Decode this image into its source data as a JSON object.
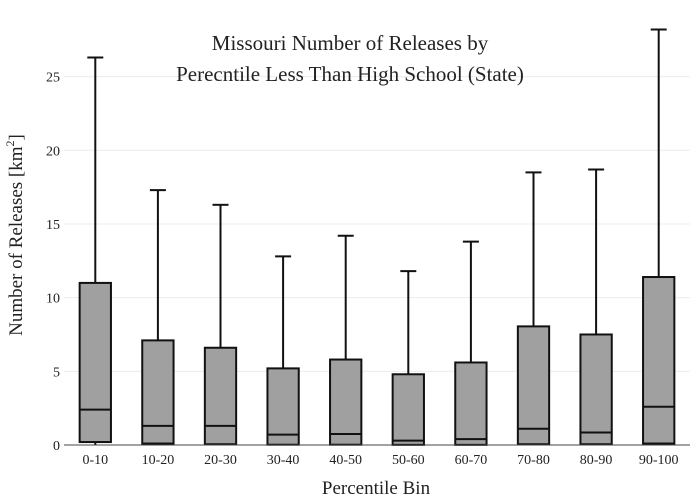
{
  "chart_data": {
    "type": "box",
    "title_lines": [
      "Missouri Number of Releases by",
      "Perecntile Less Than High School (State)"
    ],
    "xlabel": "Percentile Bin",
    "ylabel": "Number of Releases  [km",
    "ylabel_sup": "2",
    "ylabel_close": "]",
    "ylim": [
      0,
      28.3
    ],
    "yticks": [
      0,
      5,
      10,
      15,
      20,
      25
    ],
    "grid": true,
    "legend": "none",
    "box_fill": "#a0a0a0",
    "categories": [
      "0-10",
      "10-20",
      "20-30",
      "30-40",
      "40-50",
      "50-60",
      "60-70",
      "70-80",
      "80-90",
      "90-100"
    ],
    "boxes": [
      {
        "min": 0.0,
        "q1": 0.2,
        "median": 2.4,
        "q3": 11.0,
        "max": 26.3
      },
      {
        "min": 0.0,
        "q1": 0.1,
        "median": 1.3,
        "q3": 7.1,
        "max": 17.3
      },
      {
        "min": 0.0,
        "q1": 0.05,
        "median": 1.3,
        "q3": 6.6,
        "max": 16.3
      },
      {
        "min": 0.0,
        "q1": 0.02,
        "median": 0.7,
        "q3": 5.2,
        "max": 12.8
      },
      {
        "min": 0.0,
        "q1": 0.02,
        "median": 0.75,
        "q3": 5.8,
        "max": 14.2
      },
      {
        "min": 0.0,
        "q1": 0.01,
        "median": 0.3,
        "q3": 4.8,
        "max": 11.8
      },
      {
        "min": 0.0,
        "q1": 0.01,
        "median": 0.4,
        "q3": 5.6,
        "max": 13.8
      },
      {
        "min": 0.0,
        "q1": 0.05,
        "median": 1.1,
        "q3": 8.05,
        "max": 18.5
      },
      {
        "min": 0.0,
        "q1": 0.05,
        "median": 0.85,
        "q3": 7.5,
        "max": 18.7
      },
      {
        "min": 0.0,
        "q1": 0.1,
        "median": 2.6,
        "q3": 11.4,
        "max": 28.2
      }
    ]
  }
}
